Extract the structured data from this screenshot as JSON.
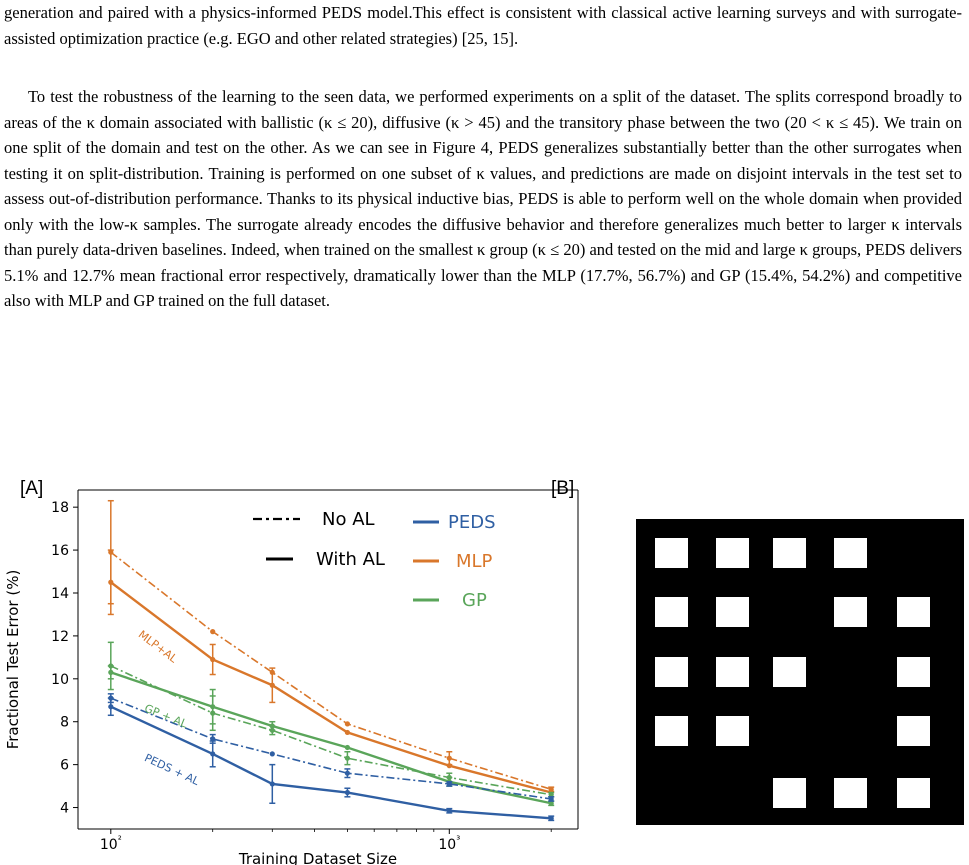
{
  "text": {
    "para1": "generation and paired with a physics-informed PEDS model.This effect is consistent with classical active learning surveys and with surrogate-assisted optimization practice (e.g. EGO and other related strategies) [25, 15].",
    "para2": "To test the robustness of the learning to the seen data, we performed experiments on a split of the dataset. The splits correspond broadly to areas of the κ domain associated with ballistic (κ ≤ 20), diffusive (κ > 45) and the transitory phase between the two (20 < κ ≤ 45). We train on one split of the domain and test on the other. As we can see in Figure 4, PEDS generalizes substantially better than the other surrogates when testing it on split-distribution. Training is performed on one subset of κ values, and predictions are made on disjoint intervals in the test set to assess out-of-distribution performance. Thanks to its physical inductive bias, PEDS is able to perform well on the whole domain when provided only with the low-κ samples. The surrogate already encodes the diffusive behavior and therefore generalizes much better to larger κ intervals than purely data-driven baselines. Indeed, when trained on the smallest κ group (κ ≤ 20) and tested on the mid and large κ groups, PEDS delivers 5.1% and 12.7% mean fractional error respectively, dramatically lower than the MLP (17.7%, 56.7%) and GP (15.4%, 54.2%) and competitive also with MLP and GP trained on the full dataset."
  },
  "figure": {
    "label_a": "[A]",
    "label_b": "[B]"
  },
  "chart_data": {
    "type": "line",
    "title": "",
    "xlabel": "Training Dataset Size",
    "ylabel": "Fractional Test Error (%)",
    "xscale": "log",
    "xlim": [
      80,
      2400
    ],
    "ylim": [
      3,
      18.8
    ],
    "xticks": [
      {
        "value": 100,
        "label": "10²"
      },
      {
        "value": 1000,
        "label": "10³"
      }
    ],
    "yticks": [
      4,
      6,
      8,
      10,
      12,
      14,
      16,
      18
    ],
    "colors": {
      "PEDS": "#2f5fa3",
      "MLP": "#d9772b",
      "GP": "#5aa55a"
    },
    "legend_styles": {
      "no_al": "No AL",
      "with_al": "With AL"
    },
    "legend_models": [
      "PEDS",
      "MLP",
      "GP"
    ],
    "annotations": [
      {
        "text": "MLP+AL",
        "series": "MLP",
        "x": 120,
        "y": 12.0,
        "angle": 37
      },
      {
        "text": "GP + AL",
        "series": "GP",
        "x": 125,
        "y": 8.5,
        "angle": 22
      },
      {
        "text": "PEDS + AL",
        "series": "PEDS",
        "x": 125,
        "y": 6.2,
        "angle": 25
      }
    ],
    "series": [
      {
        "model": "MLP",
        "al": false,
        "style": "dashdot",
        "x": [
          100,
          200,
          300,
          500,
          1000,
          2000
        ],
        "y": [
          15.9,
          12.2,
          10.3,
          7.9,
          6.3,
          4.85
        ],
        "err": [
          2.4,
          0,
          0,
          0,
          0.3,
          0.1
        ]
      },
      {
        "model": "MLP",
        "al": true,
        "style": "solid",
        "x": [
          100,
          200,
          300,
          500,
          1000,
          2000
        ],
        "y": [
          14.5,
          10.9,
          9.7,
          7.5,
          5.95,
          4.7
        ],
        "err": [
          1.5,
          0.7,
          0.8,
          0,
          0,
          0
        ]
      },
      {
        "model": "GP",
        "al": false,
        "style": "dashdot",
        "x": [
          100,
          200,
          300,
          500,
          1000,
          2000
        ],
        "y": [
          10.6,
          8.4,
          7.6,
          6.3,
          5.4,
          4.6
        ],
        "err": [
          1.1,
          0.8,
          0.2,
          0.3,
          0.2,
          0.1
        ]
      },
      {
        "model": "GP",
        "al": true,
        "style": "solid",
        "x": [
          100,
          200,
          300,
          500,
          1000,
          2000
        ],
        "y": [
          10.3,
          8.7,
          7.8,
          6.8,
          5.2,
          4.2
        ],
        "err": [
          0.3,
          0.8,
          0.2,
          0,
          0.2,
          0.1
        ]
      },
      {
        "model": "PEDS",
        "al": false,
        "style": "dashdot",
        "x": [
          100,
          200,
          300,
          500,
          1000,
          2000
        ],
        "y": [
          9.1,
          7.2,
          6.5,
          5.6,
          5.1,
          4.4
        ],
        "err": [
          0.2,
          0.2,
          0,
          0.2,
          0.1,
          0.1
        ]
      },
      {
        "model": "PEDS",
        "al": true,
        "style": "solid",
        "x": [
          100,
          200,
          300,
          500,
          1000,
          2000
        ],
        "y": [
          8.7,
          6.5,
          5.1,
          4.7,
          3.85,
          3.5
        ],
        "err": [
          0.4,
          0.6,
          0.9,
          0.2,
          0.1,
          0.1
        ]
      }
    ]
  },
  "grid_panel": {
    "rows": 5,
    "cols": 5,
    "cells": [
      [
        1,
        1,
        1,
        1,
        0
      ],
      [
        1,
        1,
        0,
        1,
        1
      ],
      [
        1,
        1,
        1,
        0,
        1
      ],
      [
        1,
        1,
        0,
        0,
        1
      ],
      [
        0,
        0,
        1,
        1,
        1
      ]
    ]
  }
}
